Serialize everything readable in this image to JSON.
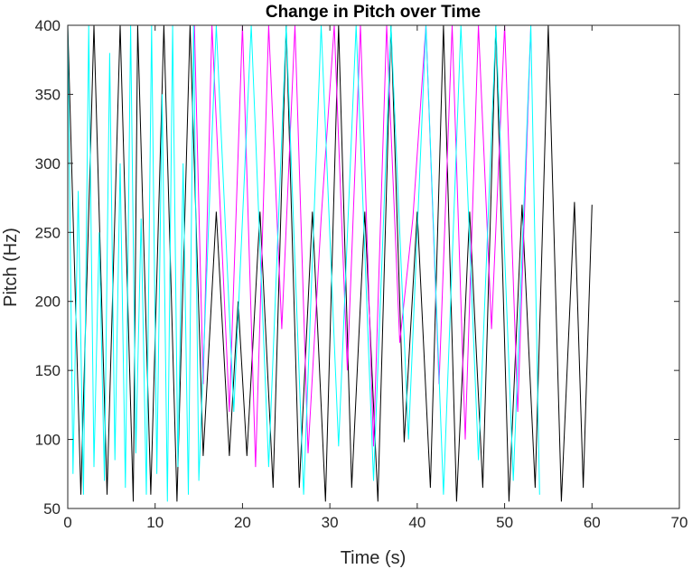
{
  "chart_data": {
    "type": "line",
    "title": "Change in Pitch over Time",
    "xlabel": "Time (s)",
    "ylabel": "Pitch (Hz)",
    "xlim": [
      0,
      70
    ],
    "ylim": [
      50,
      400
    ],
    "xticks": [
      0,
      10,
      20,
      30,
      40,
      50,
      60,
      70
    ],
    "yticks": [
      50,
      100,
      150,
      200,
      250,
      300,
      350,
      400
    ],
    "xtick_labels": [
      "0",
      "10",
      "20",
      "30",
      "40",
      "50",
      "60",
      "70"
    ],
    "ytick_labels": [
      "50",
      "100",
      "150",
      "200",
      "250",
      "300",
      "350",
      "400"
    ],
    "grid": false,
    "legend": "none",
    "series": [
      {
        "color": "#000000",
        "x": [
          0,
          1.5,
          3,
          4.5,
          6,
          7.5,
          8,
          9.5,
          11,
          12.5,
          14,
          15.5,
          17,
          18.5,
          19.5,
          20.5,
          22,
          23.5,
          25,
          26.5,
          28,
          29.5,
          31,
          32.5,
          34,
          35.5,
          37,
          38.5,
          40,
          41.5,
          43,
          44.5,
          46,
          47.5,
          49,
          50.5,
          52,
          53.5,
          55,
          56.5,
          58,
          59,
          60
        ],
        "y": [
          400,
          60,
          400,
          60,
          400,
          55,
          400,
          60,
          400,
          55,
          400,
          88,
          265,
          88,
          200,
          88,
          265,
          65,
          400,
          65,
          265,
          55,
          400,
          65,
          265,
          55,
          400,
          98,
          265,
          65,
          400,
          55,
          265,
          65,
          400,
          55,
          270,
          65,
          400,
          55,
          272,
          65,
          270
        ]
      },
      {
        "color": "#ff00ff",
        "x": [
          14.5,
          15.5,
          16.5,
          17.5,
          18.5,
          20,
          21.5,
          23,
          24.5,
          26,
          27.5,
          29,
          30.5,
          32,
          33.5,
          35,
          36.5,
          38,
          39.5,
          41,
          42.5,
          44,
          45.5,
          47,
          48.5,
          50,
          51.5,
          53,
          54,
          64
        ],
        "y": [
          400,
          140,
          400,
          260,
          120,
          400,
          80,
          400,
          180,
          400,
          90,
          260,
          400,
          150,
          400,
          95,
          400,
          170,
          260,
          400,
          140,
          400,
          100,
          400,
          180,
          400,
          120,
          400,
          400,
          400
        ]
      },
      {
        "color": "#00ffff",
        "x": [
          0,
          0.6,
          1.2,
          1.8,
          2.4,
          3,
          3.6,
          4.2,
          4.8,
          5.4,
          6,
          6.6,
          7.2,
          7.8,
          8.4,
          9,
          9.6,
          10.2,
          10.8,
          11.4,
          12,
          12.6,
          13.2,
          13.8,
          14.4,
          15,
          17,
          19,
          21,
          23,
          25,
          27,
          29,
          31,
          33,
          35,
          37,
          39,
          41,
          43,
          45,
          47,
          49,
          51,
          53,
          54
        ],
        "y": [
          400,
          75,
          280,
          60,
          400,
          80,
          250,
          70,
          380,
          85,
          300,
          65,
          400,
          90,
          260,
          60,
          400,
          75,
          350,
          55,
          400,
          80,
          300,
          60,
          400,
          70,
          400,
          120,
          400,
          80,
          400,
          60,
          400,
          95,
          400,
          70,
          400,
          100,
          400,
          60,
          400,
          85,
          400,
          70,
          400,
          60
        ]
      }
    ]
  }
}
